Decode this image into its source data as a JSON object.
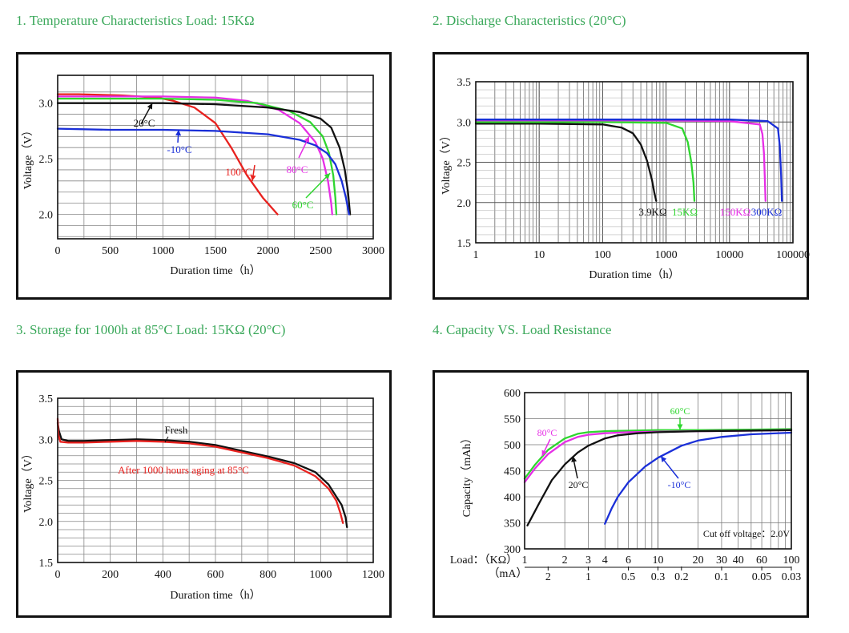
{
  "headings": {
    "c1": "1. Temperature Characteristics Load: 15KΩ",
    "c2": "2. Discharge Characteristics (20°C)",
    "c3": "3. Storage for 1000h at 85°C Load: 15KΩ (20°C)",
    "c4": "4. Capacity VS. Load Resistance"
  },
  "colors": {
    "heading": "#3aa85a",
    "black": "#111111",
    "red": "#e8211e",
    "green": "#2fd62f",
    "magenta": "#e62ee6",
    "blue": "#1a2fd8"
  },
  "chart_data": [
    {
      "type": "line",
      "title": "1. Temperature Characteristics Load: 15KΩ",
      "xlabel": "Duration time（h）",
      "ylabel": "Voltage（V）",
      "xlim": [
        0,
        3000
      ],
      "ylim": [
        1.78,
        3.25
      ],
      "xticks": [
        0,
        500,
        1000,
        1500,
        2000,
        2500,
        3000
      ],
      "yticks": [
        2.0,
        2.5,
        3.0
      ],
      "grid": true,
      "series": [
        {
          "name": "100°C",
          "color": "#e8211e",
          "x": [
            0,
            200,
            600,
            950,
            1100,
            1300,
            1500,
            1650,
            1800,
            1950,
            2090
          ],
          "y": [
            3.08,
            3.08,
            3.07,
            3.05,
            3.02,
            2.96,
            2.82,
            2.6,
            2.35,
            2.15,
            2.0
          ]
        },
        {
          "name": "80°C",
          "color": "#e62ee6",
          "x": [
            0,
            500,
            1000,
            1500,
            1800,
            2100,
            2300,
            2450,
            2520,
            2570,
            2600,
            2610
          ],
          "y": [
            3.06,
            3.06,
            3.06,
            3.05,
            3.02,
            2.94,
            2.82,
            2.65,
            2.5,
            2.3,
            2.1,
            2.0
          ]
        },
        {
          "name": "60°C",
          "color": "#2fd62f",
          "x": [
            0,
            500,
            1000,
            1500,
            1900,
            2200,
            2400,
            2520,
            2580,
            2620,
            2640,
            2650
          ],
          "y": [
            3.04,
            3.04,
            3.04,
            3.03,
            3.0,
            2.93,
            2.83,
            2.7,
            2.55,
            2.35,
            2.15,
            2.0
          ]
        },
        {
          "name": "20°C",
          "color": "#111111",
          "x": [
            0,
            500,
            1000,
            1500,
            2000,
            2300,
            2500,
            2600,
            2680,
            2730,
            2760,
            2780
          ],
          "y": [
            3.0,
            3.0,
            3.0,
            2.99,
            2.96,
            2.92,
            2.86,
            2.78,
            2.6,
            2.4,
            2.2,
            2.0
          ]
        },
        {
          "name": "-10°C",
          "color": "#1a2fd8",
          "x": [
            0,
            500,
            1000,
            1500,
            2000,
            2300,
            2450,
            2560,
            2640,
            2700,
            2740,
            2770
          ],
          "y": [
            2.77,
            2.76,
            2.76,
            2.75,
            2.72,
            2.67,
            2.62,
            2.55,
            2.45,
            2.3,
            2.15,
            2.0
          ]
        }
      ],
      "annotations": [
        {
          "text": "20°C",
          "color": "#111111"
        },
        {
          "text": "-10°C",
          "color": "#1a2fd8"
        },
        {
          "text": "100°C",
          "color": "#e8211e"
        },
        {
          "text": "80°C",
          "color": "#e62ee6"
        },
        {
          "text": "60°C",
          "color": "#2fd62f"
        }
      ]
    },
    {
      "type": "line",
      "title": "2. Discharge Characteristics (20°C)",
      "xlabel": "Duration time（h）",
      "ylabel": "Voltage（V）",
      "xscale": "log",
      "xlim": [
        1,
        100000
      ],
      "ylim": [
        1.5,
        3.5
      ],
      "xticks": [
        1,
        10,
        100,
        1000,
        10000,
        100000
      ],
      "xtick_labels": [
        "1",
        "10",
        "100",
        "1000",
        "10000",
        "100000"
      ],
      "yticks": [
        1.5,
        2.0,
        2.5,
        3.0,
        3.5
      ],
      "grid": true,
      "series": [
        {
          "name": "3.9KΩ",
          "color": "#111111",
          "x": [
            1,
            10,
            100,
            200,
            300,
            400,
            500,
            600,
            650,
            700
          ],
          "y": [
            2.98,
            2.98,
            2.97,
            2.93,
            2.86,
            2.72,
            2.52,
            2.28,
            2.13,
            2.02
          ]
        },
        {
          "name": "15KΩ",
          "color": "#2fd62f",
          "x": [
            1,
            100,
            1000,
            1800,
            2200,
            2500,
            2700,
            2800
          ],
          "y": [
            3.0,
            3.0,
            2.99,
            2.92,
            2.75,
            2.5,
            2.25,
            2.02
          ]
        },
        {
          "name": "150KΩ",
          "color": "#e62ee6",
          "x": [
            1,
            100,
            1000,
            10000,
            30000,
            33000,
            35000,
            36000,
            37000
          ],
          "y": [
            3.02,
            3.02,
            3.02,
            3.01,
            2.97,
            2.85,
            2.6,
            2.3,
            2.02
          ]
        },
        {
          "name": "300KΩ",
          "color": "#1a2fd8",
          "x": [
            1,
            100,
            1000,
            10000,
            40000,
            58000,
            62000,
            65000,
            67000
          ],
          "y": [
            3.03,
            3.03,
            3.03,
            3.03,
            3.01,
            2.92,
            2.7,
            2.35,
            2.02
          ]
        }
      ]
    },
    {
      "type": "line",
      "title": "3. Storage for 1000h at 85°C Load: 15KΩ (20°C)",
      "xlabel": "Duration time（h）",
      "ylabel": "Voltage（V）",
      "xlim": [
        0,
        1200
      ],
      "ylim": [
        1.5,
        3.5
      ],
      "xticks": [
        0,
        200,
        400,
        600,
        800,
        1000,
        1200
      ],
      "yticks": [
        1.5,
        2.0,
        2.5,
        3.0,
        3.5
      ],
      "grid": true,
      "series": [
        {
          "name": "Fresh",
          "color": "#111111",
          "x": [
            0,
            5,
            15,
            40,
            100,
            200,
            300,
            400,
            500,
            600,
            700,
            800,
            900,
            980,
            1030,
            1060,
            1080,
            1095,
            1100
          ],
          "y": [
            3.2,
            3.1,
            3.0,
            2.98,
            2.98,
            2.99,
            3.0,
            2.99,
            2.97,
            2.93,
            2.86,
            2.79,
            2.71,
            2.6,
            2.45,
            2.3,
            2.2,
            2.05,
            1.93
          ]
        },
        {
          "name": "After 1000 hours aging at 85°C",
          "color": "#e8211e",
          "x": [
            0,
            3,
            10,
            40,
            100,
            200,
            300,
            400,
            500,
            600,
            700,
            800,
            900,
            980,
            1030,
            1060,
            1075,
            1085
          ],
          "y": [
            3.25,
            3.05,
            2.97,
            2.96,
            2.96,
            2.97,
            2.98,
            2.97,
            2.95,
            2.91,
            2.84,
            2.77,
            2.68,
            2.55,
            2.4,
            2.25,
            2.1,
            1.98
          ]
        }
      ]
    },
    {
      "type": "line",
      "title": "4. Capacity VS. Load Resistance",
      "xlabel": "Load：（KΩ）",
      "x2label": "（mA）",
      "ylabel": "Capacity（mAh）",
      "xscale": "log",
      "xlim": [
        1,
        100
      ],
      "ylim": [
        300,
        600
      ],
      "xticks": [
        1,
        2,
        3,
        4,
        6,
        10,
        20,
        30,
        40,
        60,
        100
      ],
      "x2ticks": [
        {
          "label": "2",
          "at": 1.5
        },
        {
          "label": "1",
          "at": 3
        },
        {
          "label": "0.5",
          "at": 6
        },
        {
          "label": "0.3",
          "at": 10
        },
        {
          "label": "0.2",
          "at": 15
        },
        {
          "label": "0.1",
          "at": 30
        },
        {
          "label": "0.05",
          "at": 60
        },
        {
          "label": "0.03",
          "at": 100
        }
      ],
      "yticks": [
        300,
        350,
        400,
        450,
        500,
        550,
        600
      ],
      "grid": true,
      "note": "Cut off voltage：2.0V",
      "series": [
        {
          "name": "60°C",
          "color": "#2fd62f",
          "x": [
            1.0,
            1.2,
            1.5,
            2.0,
            2.5,
            3.0,
            4.0,
            6.0,
            10,
            20,
            50,
            100
          ],
          "y": [
            435,
            462,
            490,
            512,
            521,
            524,
            526,
            527,
            528,
            528,
            529,
            530
          ]
        },
        {
          "name": "80°C",
          "color": "#e62ee6",
          "x": [
            1.0,
            1.2,
            1.5,
            2.0,
            2.5,
            3.0,
            4.0,
            6.0,
            10,
            20,
            50,
            100
          ],
          "y": [
            428,
            455,
            482,
            505,
            515,
            519,
            522,
            524,
            525,
            526,
            527,
            528
          ]
        },
        {
          "name": "20°C",
          "color": "#111111",
          "x": [
            1.05,
            1.3,
            1.6,
            2.0,
            2.5,
            3.0,
            4.0,
            5.0,
            7.0,
            10,
            20,
            50,
            100
          ],
          "y": [
            345,
            390,
            432,
            462,
            485,
            498,
            512,
            518,
            522,
            524,
            526,
            527,
            528
          ]
        },
        {
          "name": "-10°C",
          "color": "#1a2fd8",
          "x": [
            4.0,
            4.5,
            5.0,
            6.0,
            8.0,
            10,
            15,
            20,
            30,
            50,
            100
          ],
          "y": [
            348,
            378,
            400,
            428,
            458,
            475,
            498,
            508,
            515,
            520,
            523
          ]
        }
      ],
      "annotations": [
        {
          "text": "60°C",
          "color": "#2fd62f"
        },
        {
          "text": "80°C",
          "color": "#e62ee6"
        },
        {
          "text": "20°C",
          "color": "#111111"
        },
        {
          "text": "-10°C",
          "color": "#1a2fd8"
        }
      ]
    }
  ]
}
